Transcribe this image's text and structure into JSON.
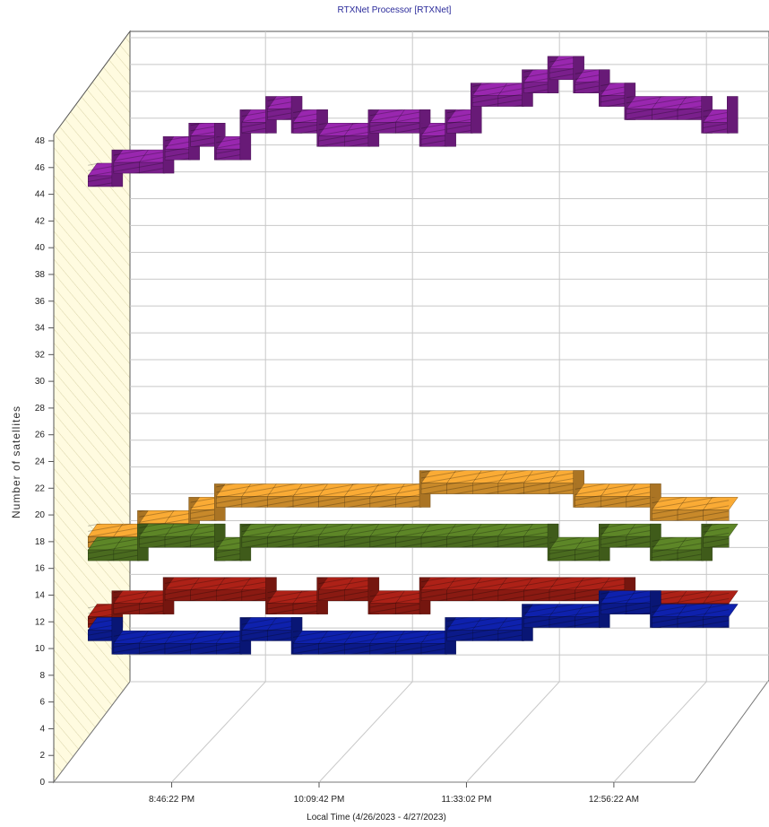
{
  "chart_data": {
    "type": "line",
    "title": "RTXNet Processor [RTXNet]",
    "xlabel": "Local Time (4/26/2023 - 4/27/2023)",
    "ylabel": "Number of satellites",
    "y_ticks": [
      0,
      2,
      4,
      6,
      8,
      10,
      12,
      14,
      16,
      18,
      20,
      22,
      24,
      26,
      28,
      30,
      32,
      34,
      36,
      38,
      40,
      42,
      44,
      46,
      48
    ],
    "ylim": [
      0,
      48
    ],
    "x_tick_labels": [
      "8:46:22 PM",
      "10:09:42 PM",
      "11:33:02 PM",
      "12:56:22 AM"
    ],
    "x_tick_positions": [
      0.17,
      0.4,
      0.63,
      0.86
    ],
    "style": "3d-ribbon",
    "grid": true,
    "legend": "none",
    "series": [
      {
        "color": "#7a1f8c",
        "x": [
          0.0,
          0.04,
          0.08,
          0.12,
          0.16,
          0.2,
          0.24,
          0.28,
          0.32,
          0.36,
          0.4,
          0.44,
          0.48,
          0.52,
          0.56,
          0.6,
          0.64,
          0.68,
          0.72,
          0.76,
          0.8,
          0.84,
          0.88,
          0.92,
          0.96,
          1.0
        ],
        "values": [
          42,
          43,
          43,
          44,
          45,
          44,
          46,
          47,
          46,
          45,
          45,
          46,
          46,
          45,
          46,
          48,
          48,
          49,
          50,
          49,
          48,
          47,
          47,
          47,
          46,
          47
        ]
      },
      {
        "color": "#c8892a",
        "x": [
          0.0,
          0.04,
          0.08,
          0.12,
          0.16,
          0.2,
          0.24,
          0.28,
          0.32,
          0.36,
          0.4,
          0.44,
          0.48,
          0.52,
          0.56,
          0.6,
          0.64,
          0.68,
          0.72,
          0.76,
          0.8,
          0.84,
          0.88,
          0.92,
          0.96,
          1.0
        ],
        "values": [
          15,
          15,
          16,
          16,
          17,
          18,
          18,
          18,
          18,
          18,
          18,
          18,
          18,
          19,
          19,
          19,
          19,
          19,
          19,
          18,
          18,
          18,
          17,
          17,
          17,
          17
        ]
      },
      {
        "color": "#4a6b1f",
        "x": [
          0.0,
          0.04,
          0.08,
          0.12,
          0.16,
          0.2,
          0.24,
          0.28,
          0.32,
          0.36,
          0.4,
          0.44,
          0.48,
          0.52,
          0.56,
          0.6,
          0.64,
          0.68,
          0.72,
          0.76,
          0.8,
          0.84,
          0.88,
          0.92,
          0.96,
          1.0
        ],
        "values": [
          14,
          14,
          15,
          15,
          15,
          14,
          15,
          15,
          15,
          15,
          15,
          15,
          15,
          15,
          15,
          15,
          15,
          15,
          14,
          14,
          15,
          15,
          14,
          14,
          15,
          15
        ]
      },
      {
        "color": "#8a1a12",
        "x": [
          0.0,
          0.04,
          0.08,
          0.12,
          0.16,
          0.2,
          0.24,
          0.28,
          0.32,
          0.36,
          0.4,
          0.44,
          0.48,
          0.52,
          0.56,
          0.6,
          0.64,
          0.68,
          0.72,
          0.76,
          0.8,
          0.84,
          0.88,
          0.92,
          0.96,
          1.0
        ],
        "values": [
          9,
          10,
          10,
          11,
          11,
          11,
          11,
          10,
          10,
          11,
          11,
          10,
          10,
          11,
          11,
          11,
          11,
          11,
          11,
          11,
          11,
          10,
          10,
          10,
          10,
          10
        ]
      },
      {
        "color": "#0b1a8a",
        "x": [
          0.0,
          0.04,
          0.08,
          0.12,
          0.16,
          0.2,
          0.24,
          0.28,
          0.32,
          0.36,
          0.4,
          0.44,
          0.48,
          0.52,
          0.56,
          0.6,
          0.64,
          0.68,
          0.72,
          0.76,
          0.8,
          0.84,
          0.88,
          0.92,
          0.96,
          1.0
        ],
        "values": [
          8,
          7,
          7,
          7,
          7,
          7,
          8,
          8,
          7,
          7,
          7,
          7,
          7,
          7,
          8,
          8,
          8,
          9,
          9,
          9,
          10,
          10,
          9,
          9,
          9,
          9
        ]
      }
    ]
  }
}
